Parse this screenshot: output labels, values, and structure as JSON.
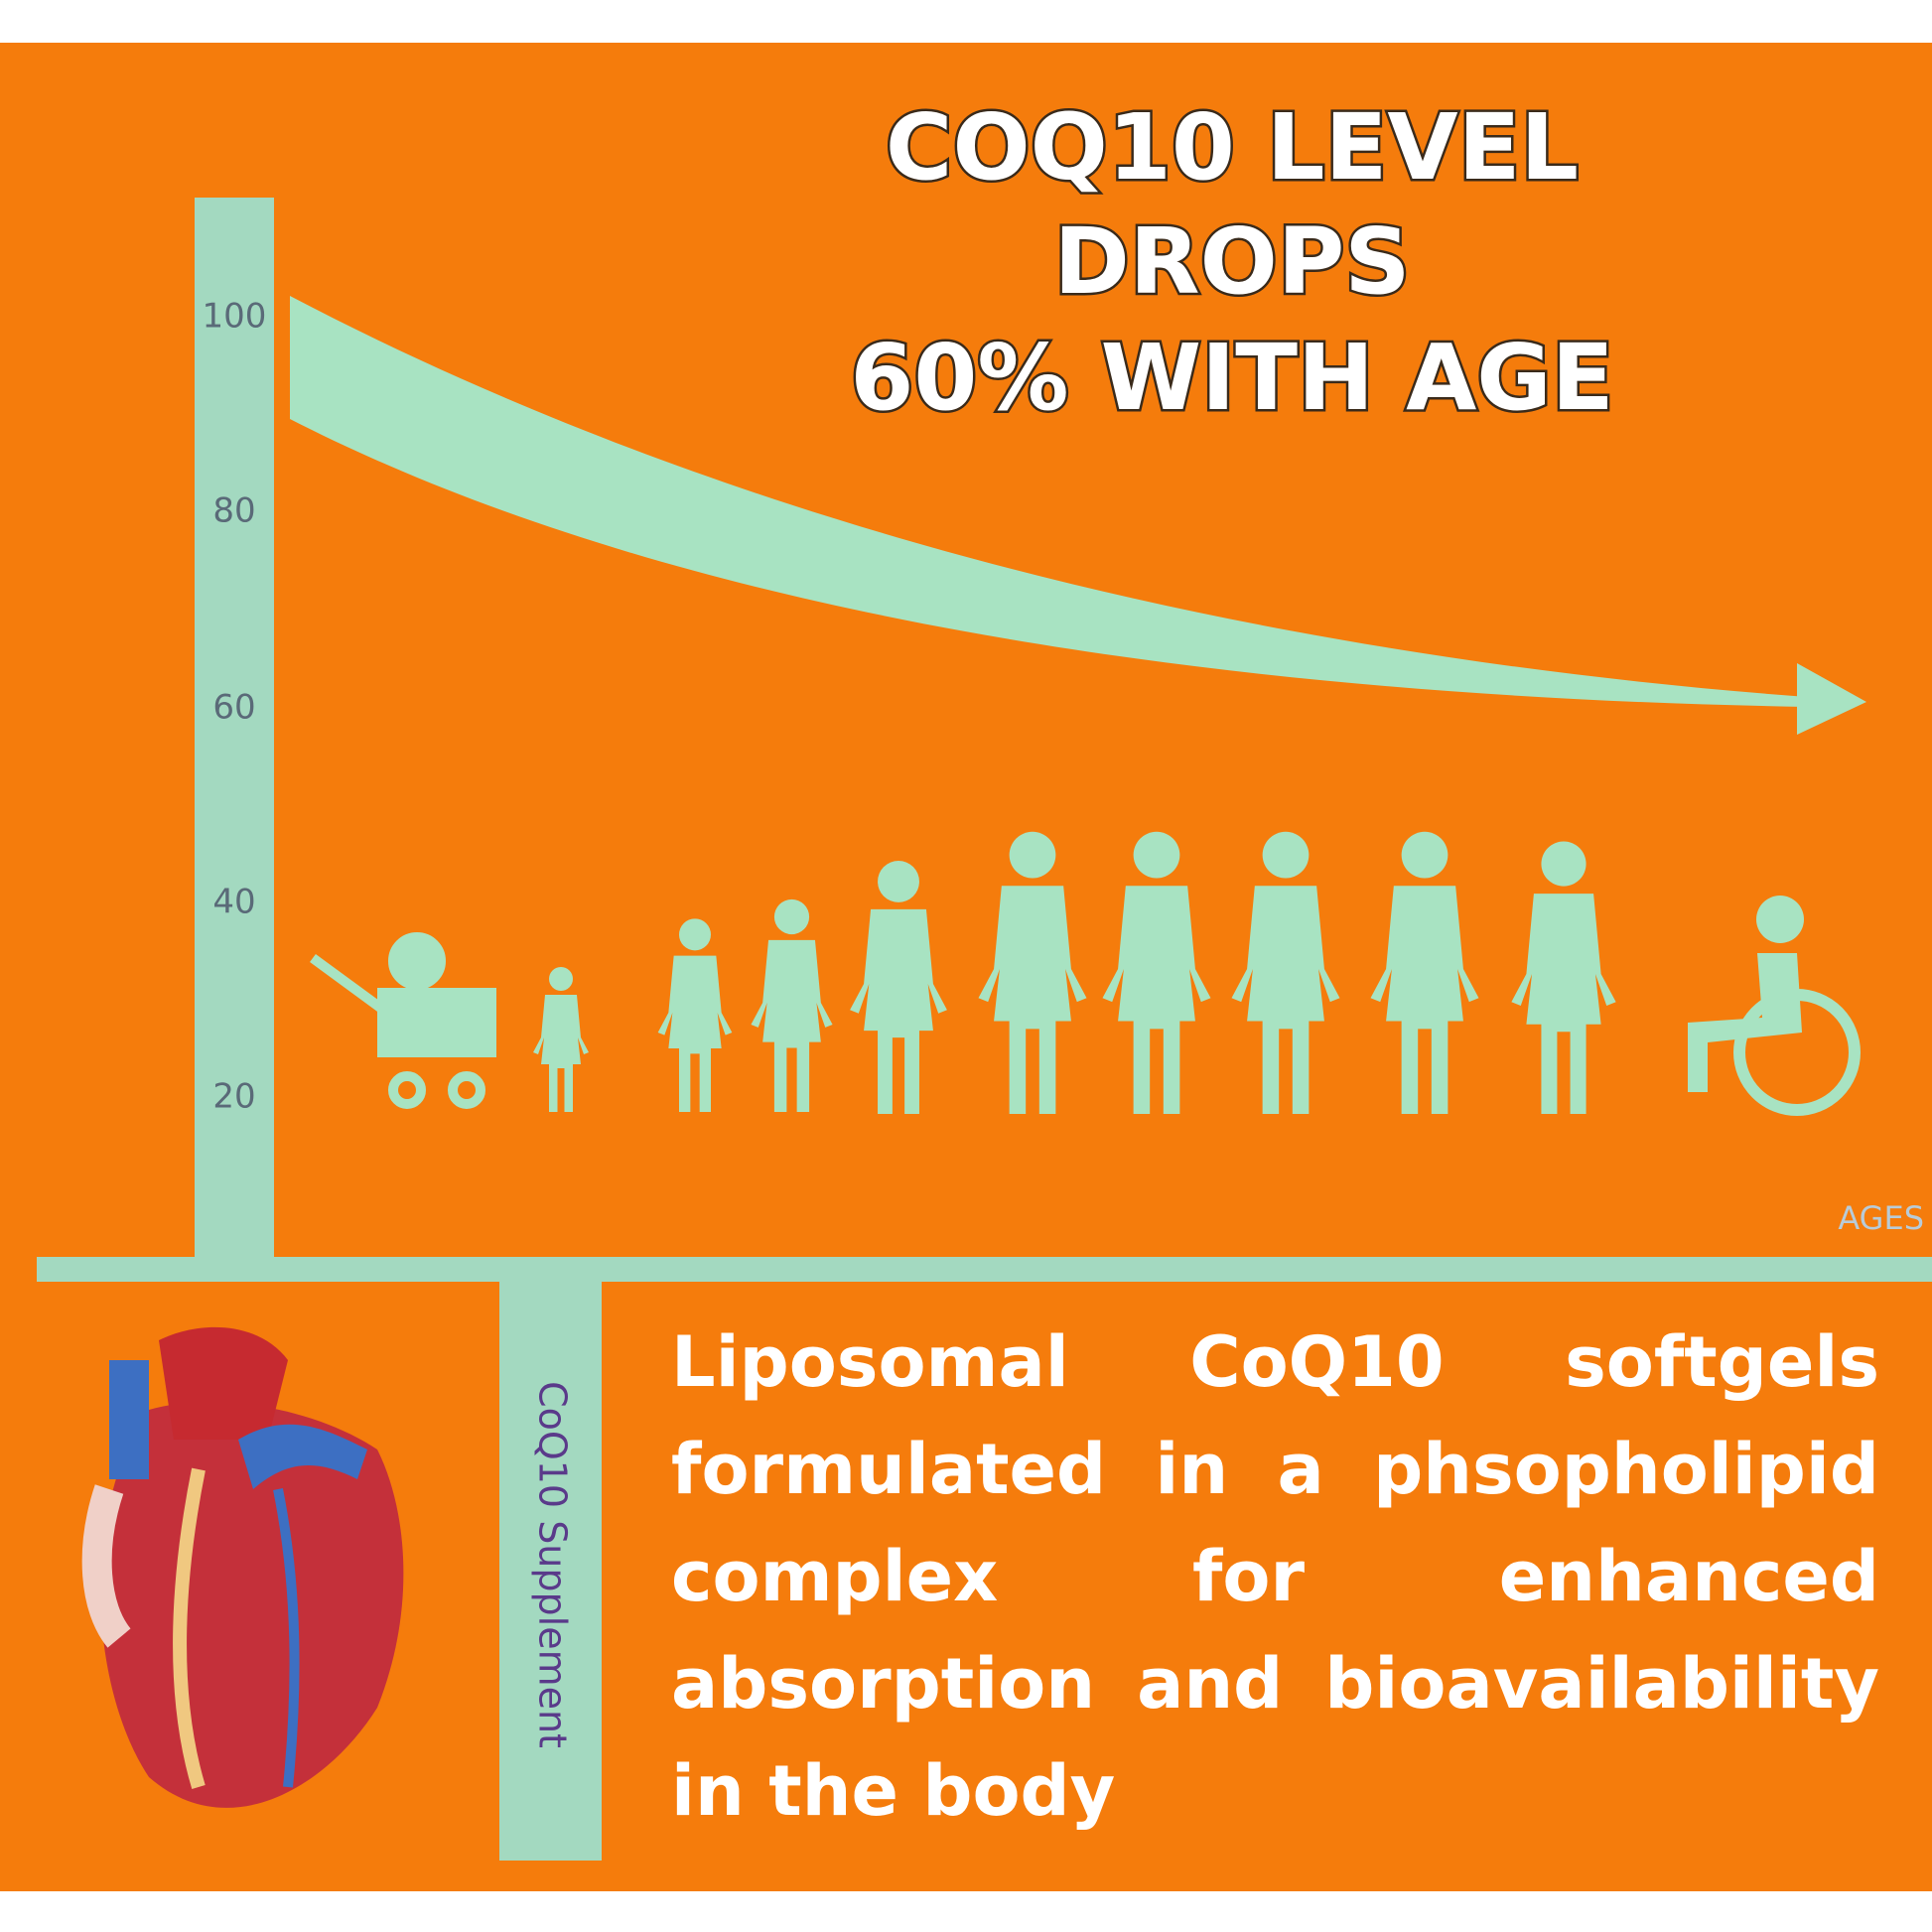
{
  "header": {
    "title": [
      "COQ10 LEVEL",
      "DROPS",
      "60% WITH AGE"
    ]
  },
  "y_axis": {
    "ticks": [
      "100",
      "80",
      "60",
      "40",
      "20"
    ]
  },
  "x_axis": {
    "label": "AGES"
  },
  "side_label": "CoQ10 Supplement",
  "paragraph": "Liposomal CoQ10 softgels formulated in a phsopholipid complex for enhanced absorption and bioavailability in the body"
}
